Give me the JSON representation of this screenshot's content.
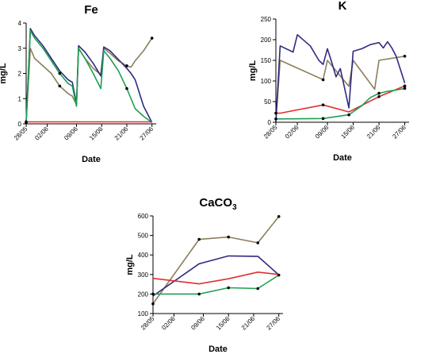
{
  "chart_data": [
    {
      "type": "line",
      "title": "Fe",
      "xlabel": "Date",
      "ylabel": "mg/L",
      "ylim": [
        0,
        4
      ],
      "yticks": [
        0,
        1,
        2,
        3,
        4
      ],
      "xlim": [
        0,
        31
      ],
      "xticks": [
        {
          "v": 0,
          "label": "28/05"
        },
        {
          "v": 5,
          "label": "02/06"
        },
        {
          "v": 12,
          "label": "09/06"
        },
        {
          "v": 18,
          "label": "15/06"
        },
        {
          "v": 24,
          "label": "21/06"
        },
        {
          "v": 30,
          "label": "27/06"
        }
      ],
      "grid": false,
      "legend": "none",
      "series": [
        {
          "color": "#8c7e5c",
          "x": [
            0,
            1,
            2,
            4,
            6,
            8,
            10,
            11,
            12,
            12.5,
            14,
            16,
            17.8,
            18.5,
            20,
            22,
            24,
            25,
            26,
            28,
            30
          ],
          "y": [
            0.05,
            3.0,
            2.6,
            2.3,
            2.0,
            1.5,
            1.2,
            1.1,
            0.75,
            3.0,
            2.6,
            2.2,
            1.95,
            3.0,
            2.8,
            2.5,
            2.3,
            2.25,
            2.5,
            2.9,
            3.4
          ],
          "markers": [
            0,
            8,
            18,
            24,
            30
          ]
        },
        {
          "color": "#2f2a80",
          "x": [
            0,
            1,
            2,
            4,
            6,
            8,
            10,
            11,
            12,
            12.5,
            14,
            16,
            17.8,
            18.5,
            20,
            22,
            24,
            25,
            26,
            28,
            30
          ],
          "y": [
            0.05,
            3.78,
            3.5,
            3.1,
            2.6,
            2.1,
            1.75,
            1.65,
            0.8,
            3.1,
            2.85,
            2.4,
            1.9,
            3.05,
            2.9,
            2.55,
            2.2,
            2.0,
            1.75,
            0.7,
            0.05
          ],
          "markers": []
        },
        {
          "color": "#1ea050",
          "x": [
            0,
            1,
            2,
            4,
            6,
            8,
            10,
            11,
            12,
            12.5,
            14,
            16,
            17.8,
            18.5,
            20,
            22,
            24,
            25,
            26,
            28,
            30
          ],
          "y": [
            0.05,
            3.7,
            3.4,
            3.0,
            2.5,
            2.0,
            1.6,
            1.5,
            0.7,
            3.0,
            2.6,
            2.0,
            1.4,
            2.9,
            2.6,
            2.1,
            1.4,
            1.0,
            0.6,
            0.3,
            0.05
          ],
          "markers": [
            8,
            18,
            24
          ]
        },
        {
          "color": "#e03030",
          "x": [
            0,
            30
          ],
          "y": [
            0.08,
            0.08
          ],
          "markers": [
            0
          ]
        }
      ]
    },
    {
      "type": "line",
      "title": "K",
      "xlabel": "Date",
      "ylabel": "mg/L",
      "ylim": [
        0,
        250
      ],
      "yticks": [
        0,
        50,
        100,
        150,
        200,
        250
      ],
      "xlim": [
        0,
        31
      ],
      "xticks": [
        {
          "v": 0,
          "label": "28/05"
        },
        {
          "v": 5,
          "label": "02/06"
        },
        {
          "v": 12,
          "label": "09/06"
        },
        {
          "v": 18,
          "label": "15/06"
        },
        {
          "v": 24,
          "label": "21/06"
        },
        {
          "v": 30,
          "label": "27/06"
        }
      ],
      "grid": false,
      "legend": "none",
      "series": [
        {
          "color": "#8c7e5c",
          "x": [
            0,
            1,
            11,
            12,
            17,
            18,
            23,
            24,
            30
          ],
          "y": [
            2,
            150,
            103,
            150,
            87,
            150,
            80,
            150,
            160
          ],
          "markers": [
            11,
            30
          ]
        },
        {
          "color": "#2f2a80",
          "x": [
            0,
            1,
            4,
            5,
            8,
            10,
            11,
            12,
            13,
            14,
            15,
            17,
            18,
            20,
            22,
            24,
            25,
            26,
            27,
            28,
            30
          ],
          "y": [
            2,
            185,
            170,
            212,
            185,
            150,
            140,
            178,
            145,
            110,
            130,
            35,
            172,
            178,
            188,
            193,
            180,
            195,
            180,
            160,
            95
          ],
          "markers": []
        },
        {
          "color": "#e03030",
          "x": [
            0,
            1,
            11,
            17,
            24,
            30
          ],
          "y": [
            22,
            22,
            42,
            25,
            62,
            88
          ],
          "markers": [
            0,
            11,
            24,
            30
          ]
        },
        {
          "color": "#1ea050",
          "x": [
            0,
            1,
            11,
            17,
            20,
            22,
            24,
            26,
            28,
            30
          ],
          "y": [
            8,
            8,
            9,
            18,
            40,
            60,
            70,
            75,
            78,
            82
          ],
          "markers": [
            0,
            11,
            17,
            24,
            30
          ]
        }
      ]
    },
    {
      "type": "line",
      "title": "CaCO",
      "title_sub": "3",
      "xlabel": "Date",
      "ylabel": "mg/L",
      "ylim": [
        100,
        600
      ],
      "yticks": [
        100,
        200,
        300,
        400,
        500,
        600
      ],
      "xlim": [
        0,
        31
      ],
      "xticks": [
        {
          "v": 0,
          "label": "28/05"
        },
        {
          "v": 5,
          "label": "02/06"
        },
        {
          "v": 12,
          "label": "09/06"
        },
        {
          "v": 18,
          "label": "15/06"
        },
        {
          "v": 24,
          "label": "21/06"
        },
        {
          "v": 30,
          "label": "27/06"
        }
      ],
      "grid": false,
      "legend": "none",
      "series": [
        {
          "color": "#8c7e5c",
          "x": [
            0,
            11,
            18,
            25,
            30
          ],
          "y": [
            150,
            480,
            492,
            462,
            597
          ],
          "markers": [
            0,
            11,
            18,
            25,
            30
          ]
        },
        {
          "color": "#2f2a80",
          "x": [
            0,
            11,
            18,
            25,
            30
          ],
          "y": [
            190,
            355,
            395,
            393,
            298
          ],
          "markers": []
        },
        {
          "color": "#e03030",
          "x": [
            0,
            11,
            18,
            25,
            30
          ],
          "y": [
            280,
            252,
            278,
            312,
            300
          ],
          "markers": []
        },
        {
          "color": "#1ea050",
          "x": [
            0,
            11,
            18,
            25,
            30
          ],
          "y": [
            200,
            200,
            232,
            228,
            297
          ],
          "markers": [
            0,
            11,
            18,
            25,
            30
          ]
        }
      ]
    }
  ]
}
